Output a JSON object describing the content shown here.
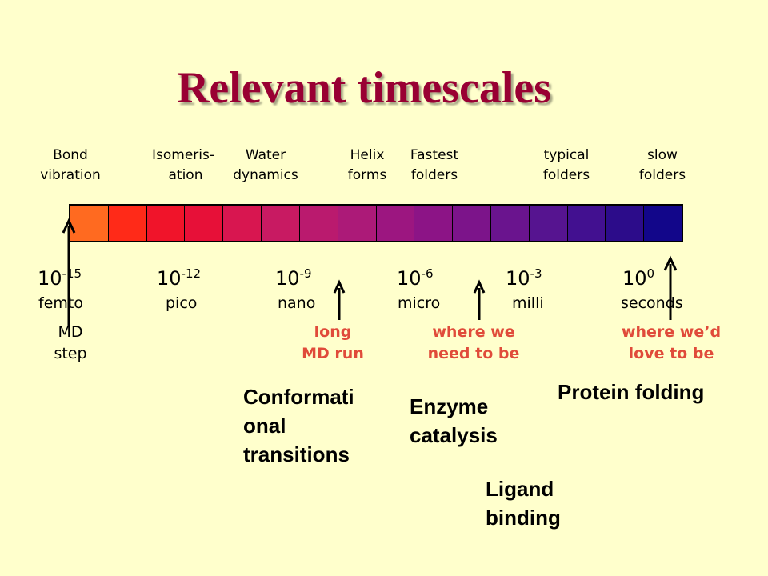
{
  "title": "Relevant timescales",
  "top_labels": [
    {
      "line1": "Bond",
      "line2": "vibration"
    },
    {
      "line1": "Isomeris-",
      "line2": "ation"
    },
    {
      "line1": "Water",
      "line2": "dynamics"
    },
    {
      "line1": "Helix",
      "line2": "forms"
    },
    {
      "line1": "Fastest",
      "line2": "folders"
    },
    {
      "line1": "typical",
      "line2": "folders"
    },
    {
      "line1": "slow",
      "line2": "folders"
    }
  ],
  "bar": {
    "segment_colors": [
      "#FF6A20",
      "#FF2A18",
      "#F0142A",
      "#E71038",
      "#D81650",
      "#C81A62",
      "#BA1A6E",
      "#AC1A78",
      "#9C1680",
      "#8C1486",
      "#7C148A",
      "#6A148E",
      "#561490",
      "#421090",
      "#2C0C8A",
      "#12068A"
    ]
  },
  "scale": [
    {
      "base": "10",
      "exp": "-15",
      "unit": "femto"
    },
    {
      "base": "10",
      "exp": "-12",
      "unit": "pico"
    },
    {
      "base": "10",
      "exp": "-9",
      "unit": "nano"
    },
    {
      "base": "10",
      "exp": "-6",
      "unit": "micro"
    },
    {
      "base": "10",
      "exp": "-3",
      "unit": "milli"
    },
    {
      "base": "10",
      "exp": "0",
      "unit": "seconds"
    }
  ],
  "notes": {
    "md_step": {
      "line1": "MD",
      "line2": "step"
    },
    "long_md_run": {
      "line1": "long",
      "line2": "MD run"
    },
    "need_to_be": {
      "line1": "where we",
      "line2": "need to be"
    },
    "love_to_be": {
      "line1": "where we’d",
      "line2": "love to be"
    }
  },
  "processes": {
    "conformational": [
      "Conformati",
      "onal",
      "transitions"
    ],
    "enzyme": [
      "Enzyme",
      "catalysis"
    ],
    "protein_folding": "Protein folding",
    "ligand": [
      "Ligand",
      "binding"
    ]
  },
  "colors": {
    "background": "#FFFFCC",
    "title": "#990033",
    "note_red": "#E04B3A"
  }
}
